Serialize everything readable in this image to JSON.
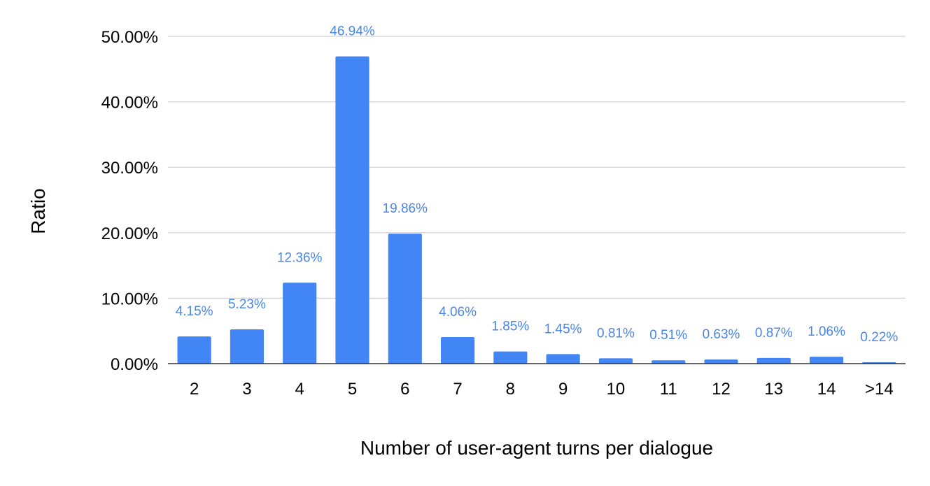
{
  "chart_data": {
    "type": "bar",
    "title": "",
    "xlabel": "Number of user-agent turns per dialogue",
    "ylabel": "Ratio",
    "categories": [
      "2",
      "3",
      "4",
      "5",
      "6",
      "7",
      "8",
      "9",
      "10",
      "11",
      "12",
      "13",
      "14",
      ">14"
    ],
    "values": [
      4.15,
      5.23,
      12.36,
      46.94,
      19.86,
      4.06,
      1.85,
      1.45,
      0.81,
      0.51,
      0.63,
      0.87,
      1.06,
      0.22
    ],
    "data_labels": [
      "4.15%",
      "5.23%",
      "12.36%",
      "46.94%",
      "19.86%",
      "4.06%",
      "1.85%",
      "1.45%",
      "0.81%",
      "0.51%",
      "0.63%",
      "0.87%",
      "1.06%",
      "0.22%"
    ],
    "y_ticks": [
      0,
      10,
      20,
      30,
      40,
      50
    ],
    "y_tick_labels": [
      "0.00%",
      "10.00%",
      "20.00%",
      "30.00%",
      "40.00%",
      "50.00%"
    ],
    "ylim": [
      0,
      50
    ],
    "grid": true,
    "legend": "none",
    "colors": {
      "bar": "#4285f4",
      "label": "#4a86e8"
    }
  }
}
